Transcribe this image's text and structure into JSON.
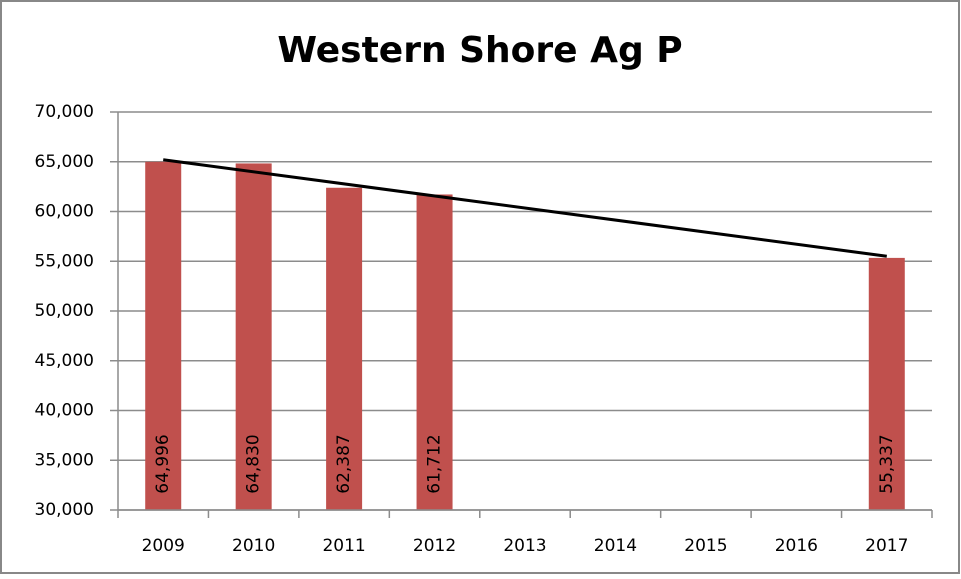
{
  "chart_data": {
    "type": "bar",
    "title": "Western Shore Ag P",
    "categories": [
      "2009",
      "2010",
      "2011",
      "2012",
      "2013",
      "2014",
      "2015",
      "2016",
      "2017"
    ],
    "values": [
      64996,
      64830,
      62387,
      61712,
      null,
      null,
      null,
      null,
      55337
    ],
    "value_labels": [
      "64,996",
      "64,830",
      "62,387",
      "61,712",
      null,
      null,
      null,
      null,
      "55,337"
    ],
    "color": "#c0504d",
    "trendline": {
      "x": [
        "2009",
        "2017"
      ],
      "values": [
        65200,
        55500
      ],
      "color": "#000000"
    },
    "ylim": [
      30000,
      70000
    ],
    "yticks": [
      {
        "value": 30000,
        "label": "30,000"
      },
      {
        "value": 35000,
        "label": "35,000"
      },
      {
        "value": 40000,
        "label": "40,000"
      },
      {
        "value": 45000,
        "label": "45,000"
      },
      {
        "value": 50000,
        "label": "50,000"
      },
      {
        "value": 55000,
        "label": "55,000"
      },
      {
        "value": 60000,
        "label": "60,000"
      },
      {
        "value": 65000,
        "label": "65,000"
      },
      {
        "value": 70000,
        "label": "70,000"
      }
    ],
    "grid": true
  }
}
